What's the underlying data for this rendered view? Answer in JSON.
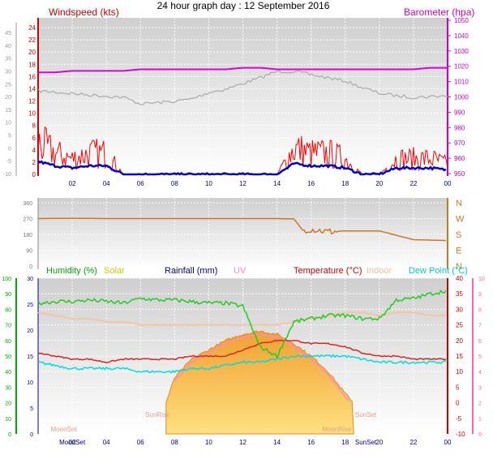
{
  "title": "24 hour graph day : 12 September 2016",
  "time_labels": [
    "02",
    "04",
    "06",
    "08",
    "10",
    "12",
    "14",
    "16",
    "18",
    "20",
    "22",
    "00"
  ],
  "panel1": {
    "left_label": "Windspeed (kts)",
    "right_label": "Barometer (hpa)",
    "left_outer_ticks": [
      "45",
      "40",
      "35",
      "30",
      "25",
      "20",
      "15",
      "10",
      "5",
      "0",
      "-5",
      "-10"
    ],
    "left_inner_ticks": [
      "24",
      "22",
      "20",
      "18",
      "16",
      "14",
      "12",
      "10",
      "8",
      "6",
      "4",
      "2",
      "0"
    ],
    "right_ticks": [
      "1050",
      "1040",
      "1030",
      "1020",
      "1010",
      "1000",
      "990",
      "980",
      "970",
      "960",
      "950"
    ],
    "colors": {
      "wind": "#ff0000",
      "gust": "#ff0000",
      "avg": "#0000cc",
      "baro": "#dd00dd",
      "gray": "#aaaaaa",
      "label_left": "#cc0000",
      "label_right": "#cc00cc"
    }
  },
  "panel2": {
    "left_ticks": [
      "360",
      "270",
      "180",
      "90",
      "0"
    ],
    "right_ticks": [
      "N",
      "W",
      "S",
      "E",
      "N"
    ],
    "color": "#cc7722"
  },
  "panel3": {
    "legend": [
      {
        "text": "Humidity (%)",
        "color": "#00aa00"
      },
      {
        "text": "Solar",
        "color": "#cccc00"
      },
      {
        "text": "Rainfall (mm)",
        "color": "#000099"
      },
      {
        "text": "UV",
        "color": "#ff88cc"
      },
      {
        "text": "Temperature (°C)",
        "color": "#cc0000"
      },
      {
        "text": "Indoor",
        "color": "#eec0a0"
      },
      {
        "text": "Dew Point (°C)",
        "color": "#00cccc"
      }
    ],
    "hum_ticks": [
      "100",
      "90",
      "80",
      "70",
      "60",
      "50",
      "40",
      "30",
      "20",
      "10",
      "0"
    ],
    "rain_ticks": [
      "30",
      "25",
      "20",
      "15",
      "10",
      "5",
      "0"
    ],
    "temp_ticks": [
      "40",
      "35",
      "30",
      "25",
      "20",
      "15",
      "10",
      "5",
      "0",
      "-5",
      "-10"
    ],
    "uv_ticks": [
      "10",
      "9",
      "8",
      "7",
      "6",
      "5",
      "4",
      "3",
      "2",
      "1",
      "0"
    ],
    "annotations": [
      "MoonSet",
      "SunRise",
      "SunSet",
      "MoonRise"
    ],
    "bottom_labels": [
      "MoonSet",
      "SunSet"
    ]
  },
  "chart_data": [
    {
      "type": "line",
      "title": "Windspeed (kts) / Barometer (hpa)",
      "x_hours": [
        0,
        1,
        2,
        3,
        4,
        5,
        6,
        7,
        8,
        9,
        10,
        11,
        12,
        13,
        14,
        15,
        16,
        17,
        18,
        19,
        20,
        21,
        22,
        23,
        24
      ],
      "series": [
        {
          "name": "Windspeed (kts)",
          "values": [
            6,
            4,
            3,
            4,
            4,
            0,
            0,
            0,
            0,
            0,
            0,
            0,
            0,
            0,
            0,
            5,
            4,
            4,
            3,
            0,
            0,
            3,
            3,
            3,
            2
          ]
        },
        {
          "name": "Barometer (hpa)",
          "values": [
            1016,
            1016,
            1017,
            1017,
            1017,
            1017,
            1018,
            1018,
            1018,
            1018,
            1018,
            1018,
            1019,
            1019,
            1018,
            1018,
            1018,
            1018,
            1018,
            1018,
            1018,
            1018,
            1018,
            1019,
            1019
          ]
        }
      ],
      "ylim": [
        0,
        24
      ]
    },
    {
      "type": "line",
      "title": "Wind direction",
      "x_hours": [
        0,
        2,
        4,
        6,
        8,
        10,
        12,
        14,
        15,
        15.5,
        16,
        17,
        18,
        19,
        20,
        21,
        22,
        24
      ],
      "series": [
        {
          "name": "Direction",
          "values": [
            270,
            272,
            270,
            270,
            270,
            270,
            270,
            270,
            268,
            205,
            210,
            195,
            200,
            200,
            200,
            175,
            150,
            145
          ]
        }
      ],
      "ylim": [
        0,
        360
      ]
    },
    {
      "type": "area",
      "title": "Solar",
      "x_hours": [
        7.5,
        8,
        9,
        10,
        11,
        12,
        13,
        14,
        15,
        16,
        17,
        18,
        18.5
      ],
      "series": [
        {
          "name": "Solar",
          "values": [
            0,
            8,
            14,
            17,
            20,
            22,
            23,
            22,
            19,
            15,
            10,
            3,
            0
          ]
        }
      ],
      "ylim": [
        -10,
        40
      ]
    },
    {
      "type": "line",
      "title": "Humidity / Temperature / Dew Point",
      "x_hours": [
        0,
        1,
        2,
        3,
        4,
        5,
        6,
        7,
        8,
        9,
        10,
        11,
        12,
        13,
        14,
        15,
        16,
        17,
        18,
        19,
        20,
        21,
        22,
        23,
        24
      ],
      "series": [
        {
          "name": "Humidity (%)",
          "values": [
            84,
            85,
            85,
            86,
            85,
            84,
            87,
            86,
            86,
            85,
            84,
            84,
            82,
            56,
            50,
            72,
            74,
            76,
            76,
            74,
            74,
            86,
            87,
            90,
            92
          ]
        },
        {
          "name": "Temperature (°C)",
          "values": [
            16,
            15,
            14,
            14,
            13,
            14,
            14,
            14,
            14,
            15,
            15,
            15,
            17,
            19,
            20,
            20,
            19,
            19,
            18,
            16,
            15,
            15,
            14,
            14,
            14
          ]
        },
        {
          "name": "Dew Point (°C)",
          "values": [
            13,
            12,
            11,
            11,
            11,
            11,
            10,
            10,
            10,
            11,
            11,
            12,
            13,
            13,
            14,
            15,
            15,
            15,
            15,
            14,
            13,
            13,
            13,
            13,
            13
          ]
        },
        {
          "name": "Indoor",
          "values": [
            29,
            28,
            27,
            27,
            26,
            26,
            25,
            25,
            25,
            25,
            25,
            25,
            25,
            25,
            25,
            26,
            27,
            28,
            29,
            29,
            28,
            29,
            29,
            28,
            28
          ]
        }
      ],
      "ylim": [
        -10,
        40
      ]
    }
  ]
}
